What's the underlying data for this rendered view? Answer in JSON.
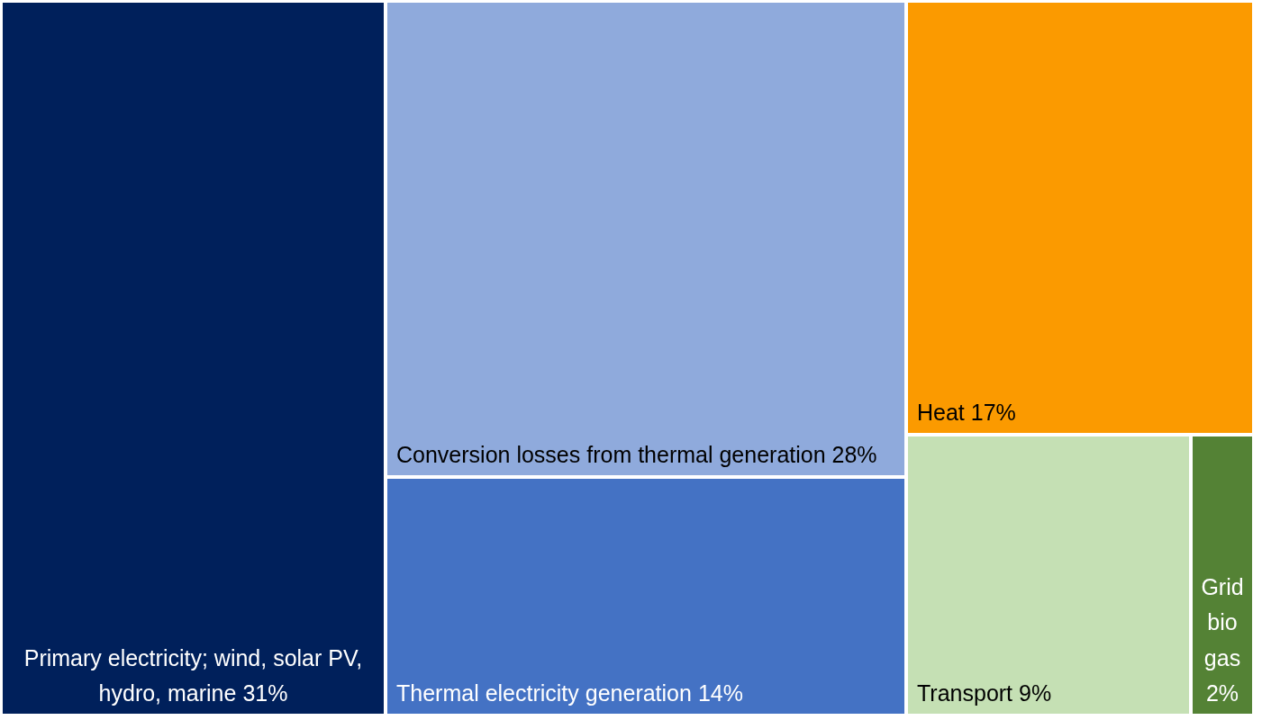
{
  "chart_data": {
    "type": "other",
    "categories": [
      "Primary electricity; wind, solar PV, hydro, marine",
      "Conversion losses from thermal generation",
      "Thermal electricity generation",
      "Heat",
      "Transport",
      "Grid bio gas"
    ],
    "values": [
      31,
      28,
      14,
      17,
      9,
      2
    ],
    "value_labels": [
      "31%",
      "28%",
      "14%",
      "17%",
      "9%",
      "2%"
    ],
    "colors": [
      "#00205b",
      "#8faadc",
      "#4472c4",
      "#fb9a00",
      "#c5e0b4",
      "#548235"
    ]
  }
}
